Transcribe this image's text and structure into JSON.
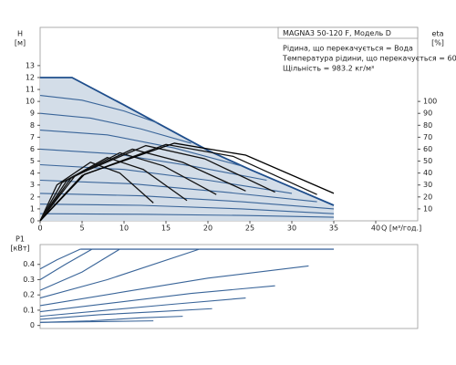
{
  "chart_data": [
    {
      "type": "line",
      "annotations": [
        "MAGNA3 50-120 F, Модель D",
        "Рідина, що перекачується = Вода",
        "Температура рідини, що перекачується = 60 °C",
        "Щільність = 983.2 кг/м³"
      ],
      "ylabel": [
        "H",
        "[м]"
      ],
      "y2label": [
        "eta",
        "[%]"
      ],
      "xlabel": "Q [м³/год.]",
      "xlim": [
        0,
        45
      ],
      "xticks": [
        0,
        5,
        10,
        15,
        20,
        25,
        30,
        35,
        40
      ],
      "ylim": [
        0,
        16.2
      ],
      "yticks": [
        0,
        1,
        2,
        3,
        4,
        5,
        6,
        7,
        8,
        9,
        10,
        11,
        12,
        13
      ],
      "y2lim": [
        0,
        162
      ],
      "y2ticks": [
        10,
        20,
        30,
        40,
        50,
        60,
        70,
        80,
        90,
        100
      ],
      "series": [
        {
          "color": "#1f4e8c",
          "fill": "#d3dde8",
          "x": [
            0,
            3.8,
            10,
            15,
            20,
            25,
            30,
            35
          ],
          "values": [
            12,
            12,
            9.7,
            7.8,
            5.9,
            4.3,
            2.8,
            1.3
          ]
        },
        {
          "color": "#3a6599",
          "x": [
            0,
            5,
            10,
            14
          ],
          "values": [
            10.5,
            10.1,
            9.2,
            8.2
          ]
        },
        {
          "color": "#3a6599",
          "x": [
            0,
            6,
            12,
            18
          ],
          "values": [
            9.0,
            8.6,
            7.7,
            6.5
          ]
        },
        {
          "color": "#3a6599",
          "x": [
            0,
            8,
            16,
            24
          ],
          "values": [
            7.6,
            7.2,
            6.1,
            4.6
          ]
        },
        {
          "color": "#3a6599",
          "x": [
            0,
            9,
            18,
            27
          ],
          "values": [
            6.0,
            5.6,
            4.6,
            3.4
          ]
        },
        {
          "color": "#3a6599",
          "x": [
            0,
            10,
            20,
            30
          ],
          "values": [
            4.7,
            4.3,
            3.4,
            2.3
          ]
        },
        {
          "color": "#3a6599",
          "x": [
            0,
            11,
            22,
            33
          ],
          "values": [
            3.4,
            3.1,
            2.4,
            1.6
          ]
        },
        {
          "color": "#3a6599",
          "x": [
            0,
            12,
            24,
            35
          ],
          "values": [
            2.3,
            2.1,
            1.6,
            1.0
          ]
        },
        {
          "color": "#3a6599",
          "x": [
            0,
            12,
            24,
            35
          ],
          "values": [
            1.4,
            1.3,
            1.0,
            0.6
          ]
        },
        {
          "color": "#3a6599",
          "x": [
            0,
            12,
            24,
            35
          ],
          "values": [
            0.6,
            0.55,
            0.45,
            0.3
          ]
        },
        {
          "color": "#111111",
          "axis": "y2",
          "x": [
            0,
            2,
            6,
            9.5,
            13.5
          ],
          "values": [
            0,
            30,
            49,
            40,
            15
          ]
        },
        {
          "color": "#111111",
          "axis": "y2",
          "x": [
            0,
            2.6,
            8,
            12.3,
            17.5
          ],
          "values": [
            0,
            32,
            53,
            43,
            17
          ]
        },
        {
          "color": "#111111",
          "axis": "y2",
          "x": [
            0,
            3.2,
            9.5,
            14.7,
            21
          ],
          "values": [
            0,
            34,
            57,
            46,
            22
          ]
        },
        {
          "color": "#111111",
          "axis": "y2",
          "x": [
            0,
            3.7,
            11,
            17,
            24.5
          ],
          "values": [
            0,
            36,
            60,
            49,
            25
          ]
        },
        {
          "color": "#111111",
          "axis": "y2",
          "x": [
            0,
            4.2,
            12.6,
            19.6,
            28
          ],
          "values": [
            0,
            38,
            63,
            52,
            24
          ]
        },
        {
          "color": "#111111",
          "axis": "y2",
          "x": [
            0,
            5,
            15,
            23,
            33
          ],
          "values": [
            0,
            38,
            64,
            54,
            22
          ]
        },
        {
          "color": "#000000",
          "axis": "y2",
          "x": [
            0,
            5.3,
            16,
            24.5,
            35
          ],
          "values": [
            0,
            39,
            65,
            55,
            23
          ]
        }
      ]
    },
    {
      "type": "line",
      "ylabel": [
        "P1",
        "[кВт]"
      ],
      "xlim": [
        0,
        45
      ],
      "ylim": [
        -0.02,
        0.53
      ],
      "yticks": [
        0,
        0.1,
        0.2,
        0.3,
        0.4
      ],
      "series": [
        {
          "color": "#1f4e8c",
          "x": [
            4.8,
            35
          ],
          "values": [
            0.5,
            0.5
          ]
        },
        {
          "color": "#3a6599",
          "x": [
            0,
            2,
            4.8
          ],
          "values": [
            0.37,
            0.43,
            0.5
          ]
        },
        {
          "color": "#3a6599",
          "x": [
            0,
            3,
            6.2
          ],
          "values": [
            0.3,
            0.4,
            0.5
          ]
        },
        {
          "color": "#3a6599",
          "x": [
            0,
            5,
            9.5
          ],
          "values": [
            0.23,
            0.35,
            0.5
          ]
        },
        {
          "color": "#3a6599",
          "x": [
            0,
            8,
            19
          ],
          "values": [
            0.18,
            0.3,
            0.5
          ]
        },
        {
          "color": "#3a6599",
          "x": [
            0,
            10,
            20,
            32
          ],
          "values": [
            0.13,
            0.22,
            0.31,
            0.39
          ]
        },
        {
          "color": "#3a6599",
          "x": [
            0,
            9,
            18,
            28
          ],
          "values": [
            0.09,
            0.15,
            0.21,
            0.26
          ]
        },
        {
          "color": "#3a6599",
          "x": [
            0,
            8,
            16,
            24.5
          ],
          "values": [
            0.06,
            0.1,
            0.14,
            0.18
          ]
        },
        {
          "color": "#3a6599",
          "x": [
            0,
            7,
            14,
            20.5
          ],
          "values": [
            0.04,
            0.07,
            0.09,
            0.11
          ]
        },
        {
          "color": "#3a6599",
          "x": [
            0,
            6,
            12,
            17
          ],
          "values": [
            0.02,
            0.03,
            0.05,
            0.06
          ]
        },
        {
          "color": "#3a6599",
          "x": [
            0,
            13.5
          ],
          "values": [
            0.02,
            0.03
          ]
        }
      ]
    }
  ]
}
